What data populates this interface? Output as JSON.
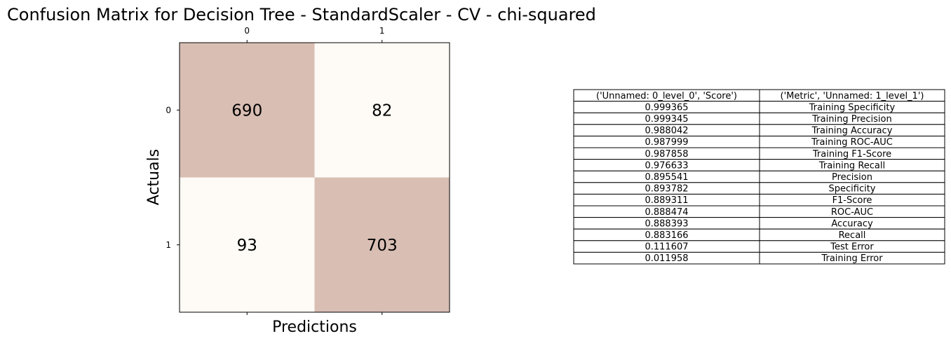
{
  "chart_data": {
    "type": "heatmap",
    "title": "Confusion Matrix for Decision Tree - StandardScaler - CV - chi-squared",
    "xlabel": "Predictions",
    "ylabel": "Actuals",
    "x_ticks": [
      "0",
      "1"
    ],
    "y_ticks": [
      "0",
      "1"
    ],
    "x_tick_position": "top",
    "grid": false,
    "matrix": [
      [
        690,
        82
      ],
      [
        93,
        703
      ]
    ],
    "colors": {
      "high": "#d9beb4",
      "low": "#fefaf5",
      "border": "#000000"
    }
  },
  "table": {
    "columns": [
      "('Unnamed: 0_level_0', 'Score')",
      "('Metric', 'Unnamed: 1_level_1')"
    ],
    "rows": [
      [
        "0.999365",
        "Training Specificity"
      ],
      [
        "0.999345",
        "Training Precision"
      ],
      [
        "0.988042",
        "Training Accuracy"
      ],
      [
        "0.987999",
        "Training ROC-AUC"
      ],
      [
        "0.987858",
        "Training F1-Score"
      ],
      [
        "0.976633",
        "Training Recall"
      ],
      [
        "0.895541",
        "Precision"
      ],
      [
        "0.893782",
        "Specificity"
      ],
      [
        "0.889311",
        "F1-Score"
      ],
      [
        "0.888474",
        "ROC-AUC"
      ],
      [
        "0.888393",
        "Accuracy"
      ],
      [
        "0.883166",
        "Recall"
      ],
      [
        "0.111607",
        "Test Error"
      ],
      [
        "0.011958",
        "Training Error"
      ]
    ]
  }
}
